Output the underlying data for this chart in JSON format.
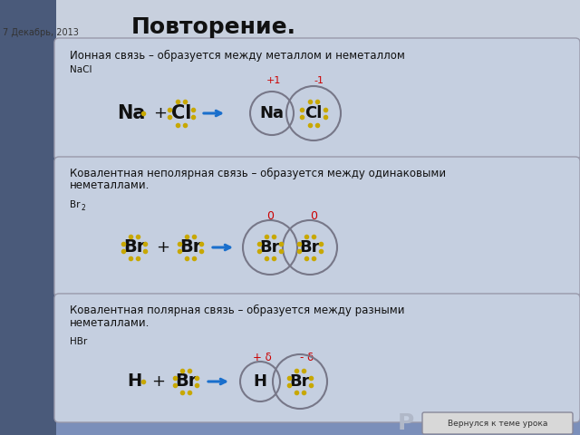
{
  "title": "Повторение.",
  "date": "7 Декабрь, 2013",
  "bg_color": "#7b8fba",
  "left_strip_color": "#4a5a7a",
  "panel_bg": "#c5cfe0",
  "panel_border": "#9999aa",
  "dot_color": "#c8a800",
  "circle_color": "#777788",
  "arrow_color": "#1a6fcc",
  "text_color": "#111111",
  "red_color": "#cc0000",
  "section1_title": "Ионная связь – образуется между металлом и неметаллом",
  "section2_title_line1": "Ковалентная неполярная связь – образуется между одинаковыми",
  "section2_title_line2": "неметаллами.",
  "section3_title_line1": "Ковалентная полярная связь – образуется между разными",
  "section3_title_line2": "неметаллами.",
  "footer_btn": "Вернулся к теме урока",
  "footer_letter": "Р"
}
